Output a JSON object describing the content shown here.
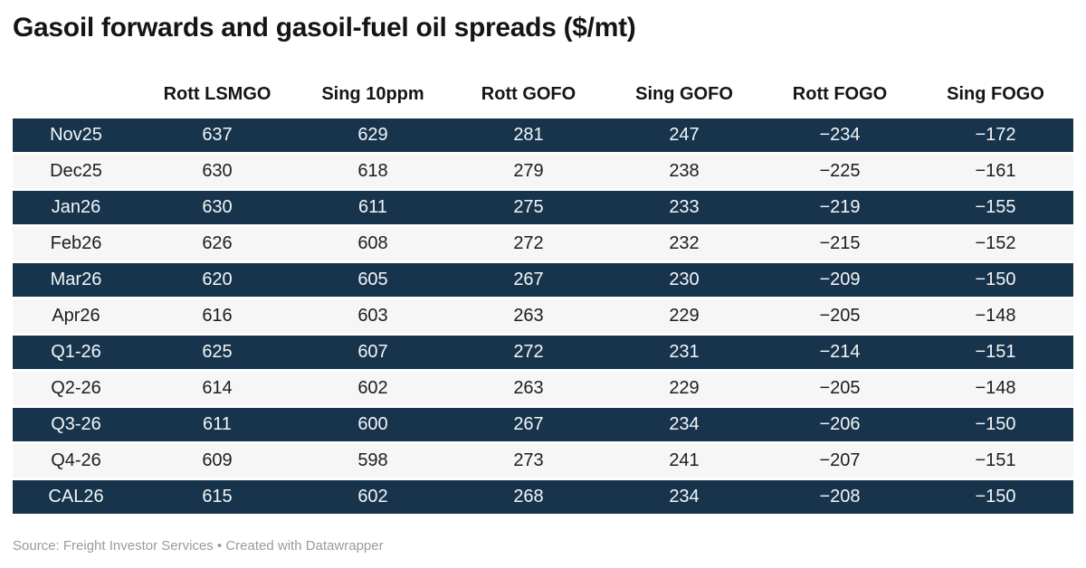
{
  "chart_data": {
    "type": "table",
    "title": "Gasoil forwards and gasoil-fuel oil spreads ($/mt)",
    "columns": [
      "Rott LSMGO",
      "Sing 10ppm",
      "Rott GOFO",
      "Sing GOFO",
      "Rott FOGO",
      "Sing FOGO"
    ],
    "row_labels": [
      "Nov25",
      "Dec25",
      "Jan26",
      "Feb26",
      "Mar26",
      "Apr26",
      "Q1-26",
      "Q2-26",
      "Q3-26",
      "Q4-26",
      "CAL26"
    ],
    "rows": [
      [
        637,
        629,
        281,
        247,
        -234,
        -172
      ],
      [
        630,
        618,
        279,
        238,
        -225,
        -161
      ],
      [
        630,
        611,
        275,
        233,
        -219,
        -155
      ],
      [
        626,
        608,
        272,
        232,
        -215,
        -152
      ],
      [
        620,
        605,
        267,
        230,
        -209,
        -150
      ],
      [
        616,
        603,
        263,
        229,
        -205,
        -148
      ],
      [
        625,
        607,
        272,
        231,
        -214,
        -151
      ],
      [
        614,
        602,
        263,
        229,
        -205,
        -148
      ],
      [
        611,
        600,
        267,
        234,
        -206,
        -150
      ],
      [
        609,
        598,
        273,
        241,
        -207,
        -151
      ],
      [
        615,
        602,
        268,
        234,
        -208,
        -150
      ]
    ],
    "stripe_pattern": "first-row-dark-alternating",
    "source_note": "Source: Freight Investor Services • Created with Datawrapper"
  },
  "colors": {
    "row_dark_bg": "#18344c",
    "row_dark_text": "#f2f6f9",
    "row_light_bg": "#f6f6f6",
    "row_light_text": "#1d1d1d",
    "title_text": "#151515",
    "header_text": "#151515",
    "footer_text": "#9b9b9b",
    "background": "#ffffff"
  }
}
